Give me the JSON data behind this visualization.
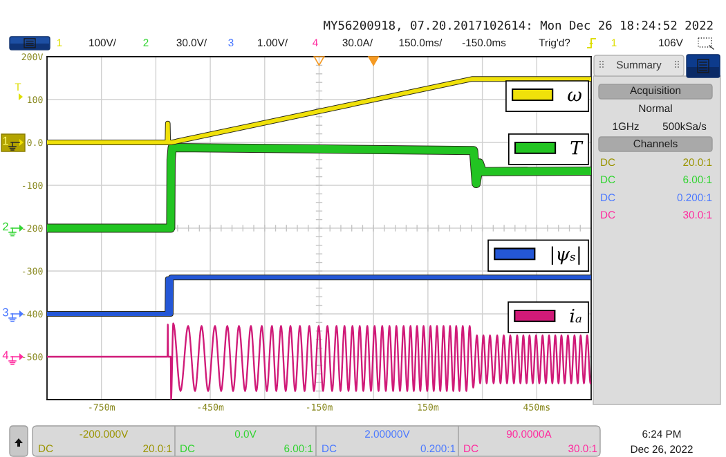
{
  "chart_data": {
    "type": "line",
    "xlim": [
      -900,
      600
    ],
    "ylim": [
      -600,
      200
    ],
    "xticks": [
      {
        "value": -750,
        "label": "-750m"
      },
      {
        "value": -600,
        "label": null
      },
      {
        "value": -450,
        "label": "-450m"
      },
      {
        "value": -300,
        "label": null
      },
      {
        "value": -150,
        "label": "-150m"
      },
      {
        "value": 0,
        "label": null
      },
      {
        "value": 150,
        "label": "150m"
      },
      {
        "value": 300,
        "label": null
      },
      {
        "value": 450,
        "label": "450ms"
      }
    ],
    "yticks": [
      {
        "value": 200,
        "label": "200V"
      },
      100,
      {
        "value": 0,
        "label": "0.0"
      },
      -100,
      -200,
      -300,
      -400,
      -500
    ],
    "grid": true,
    "legend": "right",
    "series": [
      {
        "name": "ω",
        "color": "#f0e10a",
        "x": [
          -900,
          -568,
          -567,
          -566,
          -556,
          271,
          600
        ],
        "values": [
          0,
          0,
          44,
          0,
          0,
          148,
          148
        ]
      },
      {
        "name": "T",
        "color": "#22c422",
        "x": [
          -900,
          -559,
          -558,
          -555,
          -177,
          276,
          283,
          292,
          300,
          600
        ],
        "values": [
          -200,
          -200,
          -40,
          -12,
          -15,
          -19,
          -96,
          -48,
          -68,
          -67
        ]
      },
      {
        "name": "|ψₛ|",
        "color": "#2457d6",
        "x": [
          -900,
          -568,
          -567,
          -566,
          -559,
          -558,
          600
        ],
        "values": [
          -400,
          -400,
          -319,
          -400,
          -400,
          -315,
          -315
        ]
      },
      {
        "name": "iₐ",
        "color": "#d01a78",
        "x": [
          -900,
          -568,
          -567,
          -566,
          -559,
          -558,
          -552,
          -532,
          -511,
          -492,
          -474,
          -456,
          -437,
          -420,
          -403,
          -387,
          -371,
          -354,
          -338,
          -323,
          -308,
          -294,
          -280,
          -268,
          -255,
          -242,
          -229,
          -216,
          -203,
          -190,
          -177,
          -164,
          -151,
          -139,
          -127,
          -114,
          -102,
          -91,
          -80,
          -69,
          -58,
          -48,
          -38,
          -28,
          -17,
          -7,
          3,
          14,
          24,
          34,
          44,
          54,
          63,
          73,
          83,
          93,
          102,
          111,
          120,
          129,
          138,
          148,
          157,
          166,
          175,
          184,
          193,
          202,
          211,
          220,
          228,
          237,
          246,
          256,
          265,
          275,
          285,
          294,
          303,
          312,
          321,
          331,
          341,
          350,
          359,
          368,
          377,
          387,
          396,
          405,
          413,
          422,
          430,
          439,
          448,
          457,
          466,
          475,
          484,
          493,
          501,
          510,
          518,
          527,
          536,
          545,
          554,
          563,
          571,
          580,
          589,
          598
        ],
        "values": [
          -500,
          -500,
          -425,
          -500,
          -500,
          -600,
          -422,
          -580,
          -428,
          -580,
          -428,
          -580,
          -428,
          -580,
          -428,
          -580,
          -428,
          -580,
          -428,
          -580,
          -428,
          -580,
          -428,
          -580,
          -428,
          -580,
          -428,
          -580,
          -428,
          -580,
          -428,
          -580,
          -428,
          -580,
          -428,
          -580,
          -428,
          -580,
          -428,
          -580,
          -428,
          -580,
          -428,
          -580,
          -428,
          -580,
          -428,
          -580,
          -428,
          -580,
          -428,
          -580,
          -428,
          -580,
          -428,
          -580,
          -428,
          -580,
          -428,
          -580,
          -428,
          -580,
          -428,
          -580,
          -428,
          -580,
          -428,
          -580,
          -428,
          -580,
          -428,
          -580,
          -428,
          -580,
          -428,
          -572,
          -450,
          -562,
          -450,
          -562,
          -450,
          -562,
          -450,
          -562,
          -450,
          -562,
          -450,
          -562,
          -450,
          -562,
          -450,
          -562,
          -450,
          -562,
          -450,
          -562,
          -450,
          -562,
          -450,
          -562,
          -450,
          -562,
          -450,
          -562,
          -450,
          -562,
          -450,
          -562,
          -450,
          -562,
          -450,
          -562
        ]
      }
    ],
    "annotations": [
      "MY56200918, 07.20.2017102614: Mon Dec 26 18:24:52 2022",
      "1",
      "100V/",
      "2",
      "30.0V/",
      "3",
      "1.00V/",
      "4",
      "30.0A/",
      "150.0ms/",
      "-150.0ms",
      "Trig'd?",
      "1",
      "106V",
      "Summary",
      "Acquisition",
      "Normal",
      "1GHz",
      "500kSa/s",
      "Channels",
      "DC",
      "20.0:1",
      "DC",
      "6.00:1",
      "DC",
      "0.200:1",
      "DC",
      "30.0:1",
      "-200.000V",
      "DC",
      "20.0:1",
      "0.0V",
      "DC",
      "6.00:1",
      "2.00000V",
      "DC",
      "0.200:1",
      "90.0000A",
      "DC",
      "30.0:1",
      "6:24 PM",
      "Dec 26, 2022",
      "1",
      "2",
      "3",
      "4",
      "T"
    ]
  }
}
